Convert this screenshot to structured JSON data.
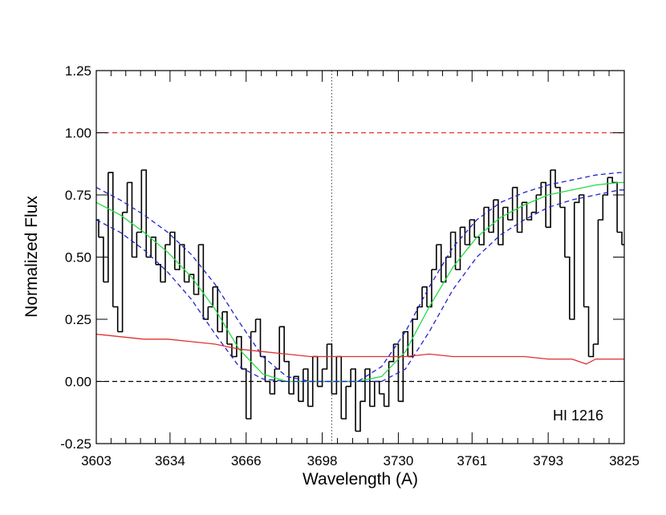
{
  "chart_data": {
    "type": "line",
    "xlabel": "Wavelength (A)",
    "ylabel": "Normalized Flux",
    "annotation": "HI 1216",
    "xlim": [
      3603,
      3825
    ],
    "ylim": [
      -0.25,
      1.25
    ],
    "xticks": [
      3603,
      3634,
      3666,
      3698,
      3730,
      3761,
      3793,
      3825
    ],
    "yticks": [
      {
        "value": -0.25,
        "label": "-0.25"
      },
      {
        "value": 0,
        "label": "0.00"
      },
      {
        "value": 0.25,
        "label": "0.25"
      },
      {
        "value": 0.5,
        "label": "0.50"
      },
      {
        "value": 0.75,
        "label": "0.75"
      },
      {
        "value": 1,
        "label": "1.00"
      },
      {
        "value": 1.25,
        "label": "1.25"
      }
    ],
    "hlines": [
      {
        "value": 1,
        "color": "#e03030"
      },
      {
        "value": 0,
        "color": "#000000"
      }
    ],
    "vline": 3702,
    "series": [
      {
        "style": "step",
        "color": "#000000",
        "x": [
          3603,
          3605,
          3607,
          3609,
          3611,
          3613,
          3615,
          3617,
          3619,
          3621,
          3623,
          3625,
          3627,
          3629,
          3631,
          3633,
          3635,
          3637,
          3639,
          3641,
          3643,
          3645,
          3647,
          3649,
          3651,
          3653,
          3655,
          3657,
          3659,
          3661,
          3663,
          3665,
          3667,
          3669,
          3671,
          3673,
          3675,
          3677,
          3679,
          3681,
          3683,
          3685,
          3687,
          3689,
          3691,
          3693,
          3695,
          3697,
          3699,
          3701,
          3703,
          3705,
          3707,
          3709,
          3711,
          3713,
          3715,
          3717,
          3719,
          3721,
          3723,
          3725,
          3727,
          3729,
          3731,
          3733,
          3735,
          3737,
          3739,
          3741,
          3743,
          3745,
          3747,
          3749,
          3751,
          3753,
          3755,
          3757,
          3759,
          3761,
          3763,
          3765,
          3767,
          3769,
          3771,
          3773,
          3775,
          3777,
          3779,
          3781,
          3783,
          3785,
          3787,
          3789,
          3791,
          3793,
          3795,
          3797,
          3799,
          3801,
          3803,
          3805,
          3807,
          3809,
          3811,
          3813,
          3815,
          3817,
          3819,
          3821,
          3823,
          3825
        ],
        "values": [
          0.65,
          0.58,
          0.4,
          0.84,
          0.3,
          0.2,
          0.68,
          0.8,
          0.5,
          0.6,
          0.85,
          0.5,
          0.58,
          0.47,
          0.4,
          0.55,
          0.6,
          0.45,
          0.55,
          0.4,
          0.43,
          0.35,
          0.55,
          0.25,
          0.3,
          0.38,
          0.2,
          0.28,
          0.15,
          0.1,
          0.18,
          0.05,
          -0.15,
          0.2,
          0.25,
          0.1,
          0.0,
          -0.05,
          0.05,
          0.22,
          0.08,
          -0.05,
          0.02,
          -0.08,
          0.05,
          -0.1,
          0.1,
          -0.02,
          0.05,
          0.15,
          -0.05,
          0.1,
          -0.15,
          -0.02,
          0.05,
          -0.2,
          -0.08,
          0.05,
          -0.1,
          0.0,
          -0.05,
          -0.1,
          0.08,
          0.15,
          -0.08,
          0.2,
          0.1,
          0.25,
          0.3,
          0.38,
          0.3,
          0.45,
          0.55,
          0.4,
          0.5,
          0.6,
          0.45,
          0.62,
          0.55,
          0.65,
          0.58,
          0.55,
          0.7,
          0.6,
          0.73,
          0.55,
          0.7,
          0.65,
          0.78,
          0.6,
          0.72,
          0.65,
          0.68,
          0.75,
          0.8,
          0.62,
          0.85,
          0.78,
          0.7,
          0.5,
          0.25,
          0.72,
          0.75,
          0.3,
          0.1,
          0.15,
          0.65,
          0.75,
          0.82,
          0.8,
          0.6,
          0.55
        ]
      },
      {
        "style": "solid",
        "color": "#22dd44",
        "x": [
          3603,
          3613,
          3623,
          3633,
          3643,
          3653,
          3663,
          3673,
          3683,
          3693,
          3703,
          3713,
          3723,
          3733,
          3743,
          3753,
          3763,
          3773,
          3783,
          3793,
          3803,
          3813,
          3823,
          3825
        ],
        "values": [
          0.72,
          0.67,
          0.6,
          0.52,
          0.42,
          0.29,
          0.13,
          0.03,
          0,
          0,
          0,
          0,
          0.02,
          0.12,
          0.3,
          0.46,
          0.58,
          0.66,
          0.71,
          0.75,
          0.77,
          0.79,
          0.8,
          0.8
        ]
      },
      {
        "style": "dashed",
        "color": "#2222cc",
        "x": [
          3603,
          3613,
          3623,
          3633,
          3643,
          3653,
          3663,
          3673,
          3683,
          3693,
          3703,
          3713,
          3723,
          3733,
          3743,
          3753,
          3763,
          3773,
          3783,
          3793,
          3803,
          3813,
          3823,
          3825
        ],
        "values": [
          0.78,
          0.73,
          0.67,
          0.6,
          0.51,
          0.39,
          0.24,
          0.1,
          0.02,
          0,
          0,
          0,
          0.06,
          0.2,
          0.38,
          0.54,
          0.65,
          0.72,
          0.76,
          0.79,
          0.81,
          0.83,
          0.84,
          0.84
        ]
      },
      {
        "style": "dashed",
        "color": "#2222cc",
        "x": [
          3603,
          3613,
          3623,
          3633,
          3643,
          3653,
          3663,
          3673,
          3683,
          3693,
          3703,
          3713,
          3723,
          3733,
          3743,
          3753,
          3763,
          3773,
          3783,
          3793,
          3803,
          3813,
          3823,
          3825
        ],
        "values": [
          0.65,
          0.6,
          0.53,
          0.44,
          0.33,
          0.19,
          0.06,
          0.01,
          0,
          0,
          0,
          0,
          0,
          0.05,
          0.2,
          0.37,
          0.5,
          0.59,
          0.65,
          0.7,
          0.73,
          0.75,
          0.77,
          0.77
        ]
      },
      {
        "style": "solid",
        "color": "#e03030",
        "x": [
          3603,
          3613,
          3623,
          3633,
          3643,
          3653,
          3663,
          3673,
          3683,
          3693,
          3703,
          3713,
          3723,
          3733,
          3743,
          3753,
          3763,
          3773,
          3783,
          3793,
          3803,
          3809,
          3813,
          3823,
          3825
        ],
        "values": [
          0.19,
          0.18,
          0.17,
          0.17,
          0.16,
          0.15,
          0.13,
          0.12,
          0.11,
          0.1,
          0.1,
          0.1,
          0.1,
          0.1,
          0.11,
          0.1,
          0.1,
          0.1,
          0.1,
          0.09,
          0.09,
          0.07,
          0.09,
          0.09,
          0.09
        ]
      }
    ]
  }
}
